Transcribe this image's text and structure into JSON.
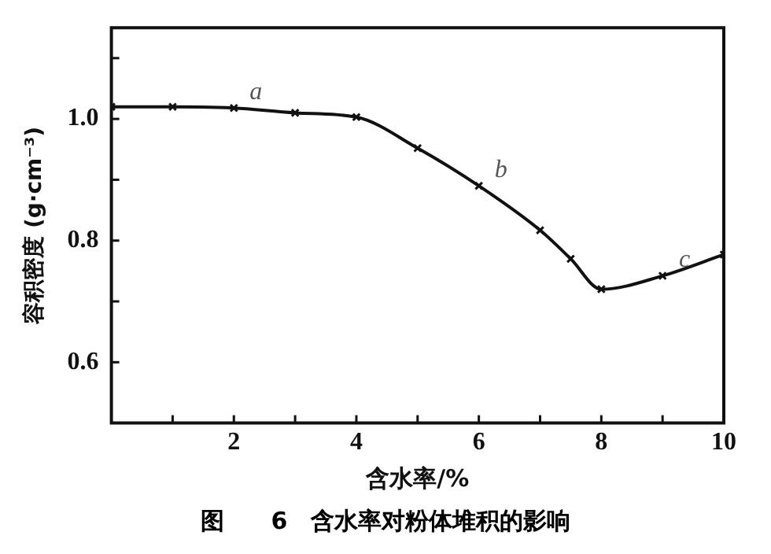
{
  "chart_data": {
    "type": "line",
    "title": "图　　6　含水率对粉体堆积的影响",
    "xlabel": "含水率/%",
    "ylabel": "容积密度 (g·cm⁻³)",
    "x": [
      0,
      1,
      2,
      3,
      4,
      5,
      6,
      7,
      7.5,
      8,
      9,
      10
    ],
    "series": [
      {
        "color": "#111111",
        "values": [
          1.02,
          1.02,
          1.018,
          1.01,
          1.003,
          0.952,
          0.89,
          0.817,
          0.77,
          0.72,
          0.742,
          0.777
        ]
      }
    ],
    "xlim": [
      0,
      10
    ],
    "xticks": [
      {
        "value": 1,
        "label": null
      },
      2,
      {
        "value": 3,
        "label": null
      },
      4,
      {
        "value": 5,
        "label": null
      },
      6,
      {
        "value": 7,
        "label": null
      },
      8,
      {
        "value": 9,
        "label": null
      },
      10
    ],
    "ylim": [
      0.5,
      1.15
    ],
    "yticks": [
      0.6,
      {
        "value": 0.7,
        "label": null
      },
      0.8,
      {
        "value": 0.9,
        "label": null
      },
      {
        "value": 1.0,
        "label": "1.0"
      },
      {
        "value": 1.1,
        "label": null
      }
    ],
    "grid": false,
    "legend": false,
    "marker": "cross",
    "line_style": "solid",
    "annotations": [
      {
        "text": "a",
        "x": 2,
        "y": 1.018
      },
      {
        "text": "b",
        "x": 6,
        "y": 0.89
      },
      {
        "text": "c",
        "x": 9,
        "y": 0.742
      }
    ]
  }
}
